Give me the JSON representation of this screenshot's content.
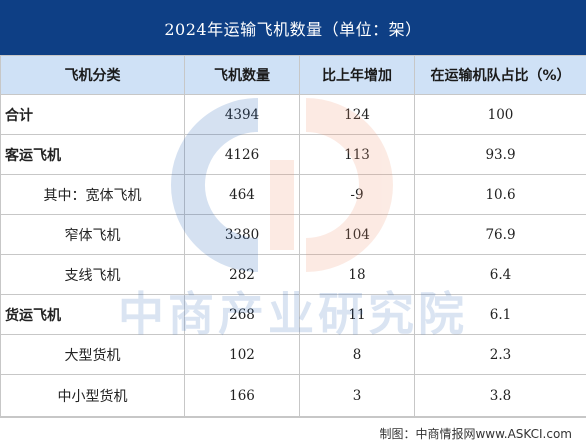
{
  "title": "2024年运输飞机数量（单位：架）",
  "columns": [
    "飞机分类",
    "飞机数量",
    "比上年增加",
    "在运输机队占比（%）"
  ],
  "rows": [
    {
      "label": "合计",
      "count": "4394",
      "increase": "124",
      "share": "100",
      "style": "main"
    },
    {
      "label": "客运飞机",
      "count": "4126",
      "increase": "113",
      "share": "93.9",
      "style": "main"
    },
    {
      "label": "其中：宽体飞机",
      "count": "464",
      "increase": "-9",
      "share": "10.6",
      "style": "sub"
    },
    {
      "label": "窄体飞机",
      "count": "3380",
      "increase": "104",
      "share": "76.9",
      "style": "sub"
    },
    {
      "label": "支线飞机",
      "count": "282",
      "increase": "18",
      "share": "6.4",
      "style": "sub"
    },
    {
      "label": "货运飞机",
      "count": "268",
      "increase": "11",
      "share": "6.1",
      "style": "main"
    },
    {
      "label": "大型货机",
      "count": "102",
      "increase": "8",
      "share": "2.3",
      "style": "sub"
    },
    {
      "label": "中小型货机",
      "count": "166",
      "increase": "3",
      "share": "3.8",
      "style": "sub"
    }
  ],
  "footer": "制图：中商情报网www.ASKCI.com",
  "watermark_text": "中商产业研究院",
  "colors": {
    "title_bg": "#0e3f85",
    "header_bg": "#cfe1f6",
    "border": "#c7c7c7",
    "watermark_blue": "#1f5fb5",
    "watermark_orange": "#ef8f6a"
  }
}
